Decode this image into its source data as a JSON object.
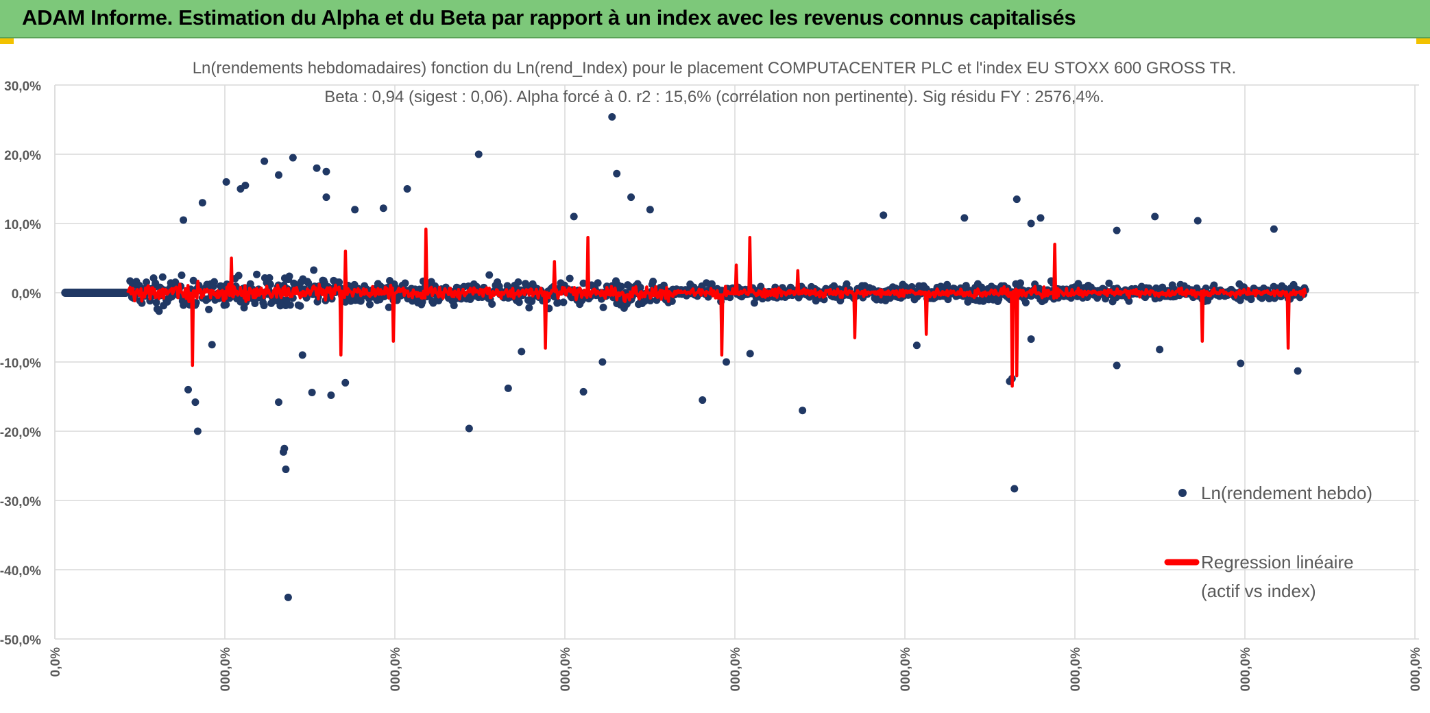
{
  "banner": {
    "title": "ADAM Informe. Estimation du Alpha et du Beta par rapport à un index avec les revenus connus capitalisés"
  },
  "colors": {
    "banner_bg": "#7dc87a",
    "accent_corner": "#f2c200",
    "points": "#203864",
    "regression": "#ff0000",
    "grid": "#d9d9d9",
    "text": "#595959"
  },
  "chart_data": {
    "type": "scatter",
    "title": "Ln(rendements hebdomadaires) fonction du Ln(rend_Index) pour le placement COMPUTACENTER PLC et l'index EU STOXX 600 GROSS TR.",
    "subtitle": "Beta : 0,94 (sigest : 0,06). Alpha forcé à 0. r2 : 15,6% (corrélation non pertinente). Sig résidu FY : 2576,4%.",
    "y_ticks": [
      "30,0%",
      "20,0%",
      "10,0%",
      "0,0%",
      "-10,0%",
      "-20,0%",
      "-30,0%",
      "-40,0%",
      "-50,0%"
    ],
    "x_ticks": [
      "0,0%",
      "000,0%",
      "000,0%",
      "000,0%",
      "000,0%",
      "000,0%",
      "000,0%",
      "000,0%",
      "000,0%"
    ],
    "ylim": [
      -0.5,
      0.3
    ],
    "grid": true,
    "legend_position": "right",
    "series": [
      {
        "name": "Ln(rendement hebdo)",
        "kind": "points",
        "x_start": 0.0022,
        "x_end": 0.0941,
        "y_start": 0.0,
        "flat_count": 60,
        "total_count": 1300,
        "outliers": [
          [
            0.027,
            0.105
          ],
          [
            0.031,
            0.13
          ],
          [
            0.033,
            -0.075
          ],
          [
            0.036,
            0.16
          ],
          [
            0.039,
            0.15
          ],
          [
            0.04,
            0.155
          ],
          [
            0.044,
            0.19
          ],
          [
            0.047,
            0.17
          ],
          [
            0.048,
            -0.23
          ],
          [
            0.0482,
            -0.225
          ],
          [
            0.0485,
            -0.255
          ],
          [
            0.049,
            -0.44
          ],
          [
            0.05,
            0.195
          ],
          [
            0.055,
            0.18
          ],
          [
            0.057,
            0.175
          ],
          [
            0.057,
            0.138
          ],
          [
            0.047,
            -0.158
          ],
          [
            0.03,
            -0.2
          ],
          [
            0.028,
            -0.14
          ],
          [
            0.0295,
            -0.158
          ],
          [
            0.052,
            -0.09
          ],
          [
            0.063,
            0.12
          ],
          [
            0.069,
            0.122
          ],
          [
            0.058,
            -0.148
          ],
          [
            0.054,
            -0.144
          ],
          [
            0.074,
            0.15
          ],
          [
            0.089,
            0.2
          ],
          [
            0.087,
            -0.196
          ],
          [
            0.117,
            0.254
          ],
          [
            0.111,
            -0.143
          ],
          [
            0.109,
            0.11
          ],
          [
            0.118,
            0.172
          ],
          [
            0.121,
            0.138
          ],
          [
            0.125,
            0.12
          ],
          [
            0.115,
            -0.1
          ],
          [
            0.136,
            -0.155
          ],
          [
            0.157,
            -0.17
          ],
          [
            0.0952,
            -0.138
          ],
          [
            0.174,
            0.112
          ],
          [
            0.191,
            0.108
          ],
          [
            0.205,
            0.1
          ],
          [
            0.201,
            -0.124
          ],
          [
            0.2005,
            -0.128
          ],
          [
            0.2015,
            -0.283
          ],
          [
            0.202,
            0.135
          ],
          [
            0.205,
            -0.067
          ],
          [
            0.207,
            0.108
          ],
          [
            0.223,
            0.09
          ],
          [
            0.223,
            -0.105
          ],
          [
            0.231,
            0.11
          ],
          [
            0.24,
            0.104
          ],
          [
            0.249,
            -0.102
          ],
          [
            0.256,
            0.092
          ],
          [
            0.261,
            -0.113
          ],
          [
            0.141,
            -0.1
          ],
          [
            0.098,
            -0.085
          ],
          [
            0.061,
            -0.13
          ],
          [
            0.146,
            -0.088
          ],
          [
            0.181,
            -0.076
          ],
          [
            0.232,
            -0.082
          ]
        ]
      },
      {
        "name": "Regression linéaire\n(actif vs index)",
        "kind": "line",
        "beta": 0.94,
        "spikes": [
          [
            0.029,
            -0.105
          ],
          [
            0.037,
            0.05
          ],
          [
            0.06,
            -0.09
          ],
          [
            0.061,
            0.06
          ],
          [
            0.078,
            0.092
          ],
          [
            0.071,
            -0.07
          ],
          [
            0.103,
            -0.08
          ],
          [
            0.105,
            0.045
          ],
          [
            0.14,
            -0.09
          ],
          [
            0.143,
            0.04
          ],
          [
            0.156,
            0.032
          ],
          [
            0.168,
            -0.065
          ],
          [
            0.183,
            -0.06
          ],
          [
            0.201,
            -0.135
          ],
          [
            0.202,
            -0.12
          ],
          [
            0.21,
            0.07
          ],
          [
            0.241,
            -0.07
          ],
          [
            0.259,
            -0.08
          ],
          [
            0.146,
            0.08
          ],
          [
            0.112,
            0.08
          ]
        ]
      }
    ]
  }
}
